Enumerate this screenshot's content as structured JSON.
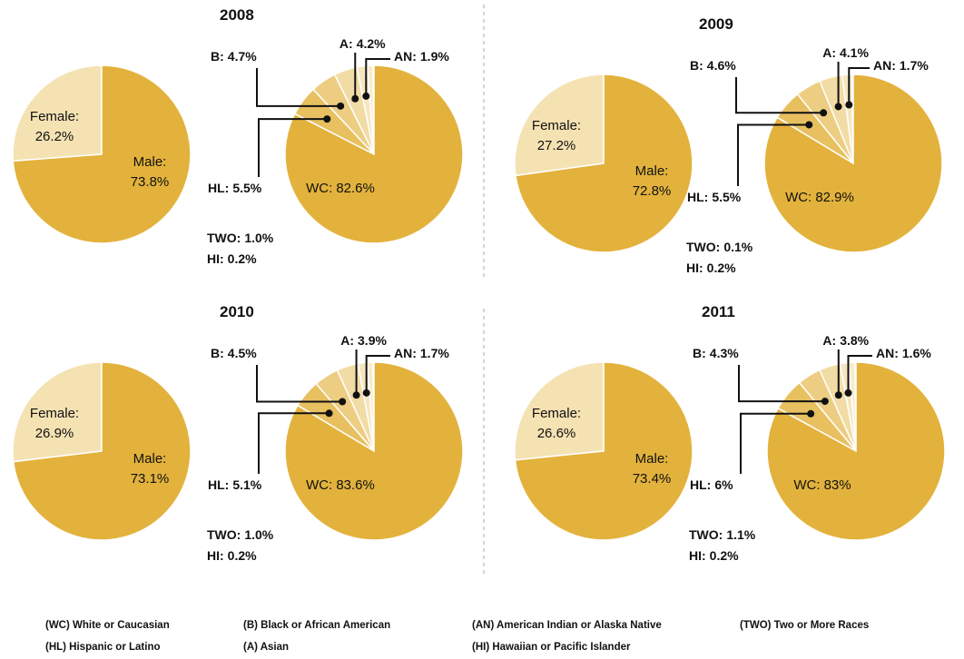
{
  "chart_data": [
    {
      "type": "pie",
      "categories": [
        "Female:",
        "Male:"
      ],
      "values": [
        26.2,
        73.8
      ],
      "value_labels": [
        "26.2%",
        "73.8%"
      ],
      "colors": [
        "#f5e2b3",
        "#e3b23c"
      ]
    },
    {
      "type": "pie",
      "title": "2008",
      "categories": [
        "WC:",
        "HL:",
        "B:",
        "A:",
        "AN:",
        "TWO:",
        "HI:"
      ],
      "values": [
        82.6,
        5.5,
        4.7,
        4.2,
        1.9,
        1.0,
        0.2
      ],
      "value_labels": [
        "82.6%",
        "5.5%",
        "4.7%",
        "4.2%",
        "1.9%",
        "1.0%",
        "0.2%"
      ],
      "colors": [
        "#e3b23c",
        "#e8c060",
        "#edcd82",
        "#f2dca5",
        "#f6e6c0",
        "#f8ebcb",
        "#faf0d8"
      ]
    },
    {
      "type": "pie",
      "categories": [
        "Female:",
        "Male:"
      ],
      "values": [
        27.2,
        72.8
      ],
      "value_labels": [
        "27.2%",
        "72.8%"
      ],
      "colors": [
        "#f5e2b3",
        "#e3b23c"
      ]
    },
    {
      "type": "pie",
      "title": "2009",
      "categories": [
        "WC:",
        "HL:",
        "B:",
        "A:",
        "AN:",
        "TWO:",
        "HI:"
      ],
      "values": [
        82.9,
        5.5,
        4.6,
        4.1,
        1.7,
        0.1,
        0.2
      ],
      "value_labels": [
        "82.9%",
        "5.5%",
        "4.6%",
        "4.1%",
        "1.7%",
        "0.1%",
        "0.2%"
      ],
      "colors": [
        "#e3b23c",
        "#e8c060",
        "#edcd82",
        "#f2dca5",
        "#f6e6c0",
        "#f8ebcb",
        "#faf0d8"
      ]
    },
    {
      "type": "pie",
      "categories": [
        "Female:",
        "Male:"
      ],
      "values": [
        26.9,
        73.1
      ],
      "value_labels": [
        "26.9%",
        "73.1%"
      ],
      "colors": [
        "#f5e2b3",
        "#e3b23c"
      ]
    },
    {
      "type": "pie",
      "title": "2010",
      "categories": [
        "WC:",
        "HL:",
        "B:",
        "A:",
        "AN:",
        "TWO:",
        "HI:"
      ],
      "values": [
        83.6,
        5.1,
        4.5,
        3.9,
        1.7,
        1.0,
        0.2
      ],
      "value_labels": [
        "83.6%",
        "5.1%",
        "4.5%",
        "3.9%",
        "1.7%",
        "1.0%",
        "0.2%"
      ],
      "colors": [
        "#e3b23c",
        "#e8c060",
        "#edcd82",
        "#f2dca5",
        "#f6e6c0",
        "#f8ebcb",
        "#faf0d8"
      ]
    },
    {
      "type": "pie",
      "categories": [
        "Female:",
        "Male:"
      ],
      "values": [
        26.6,
        73.4
      ],
      "value_labels": [
        "26.6%",
        "73.4%"
      ],
      "colors": [
        "#f5e2b3",
        "#e3b23c"
      ]
    },
    {
      "type": "pie",
      "title": "2011",
      "categories": [
        "WC:",
        "HL:",
        "B:",
        "A:",
        "AN:",
        "TWO:",
        "HI:"
      ],
      "values": [
        83,
        6,
        4.3,
        3.8,
        1.6,
        1.1,
        0.2
      ],
      "value_labels": [
        "83%",
        "6%",
        "4.3%",
        "3.8%",
        "1.6%",
        "1.1%",
        "0.2%"
      ],
      "colors": [
        "#e3b23c",
        "#e8c060",
        "#edcd82",
        "#f2dca5",
        "#f6e6c0",
        "#f8ebcb",
        "#faf0d8"
      ]
    }
  ],
  "legend": [
    "(WC) White or Caucasian",
    "(B) Black or African American",
    "(AN) American Indian or Alaska Native",
    "(TWO) Two or More Races",
    "(HL) Hispanic or Latino",
    "(A) Asian",
    "(HI) Hawaiian or Pacific Islander"
  ]
}
